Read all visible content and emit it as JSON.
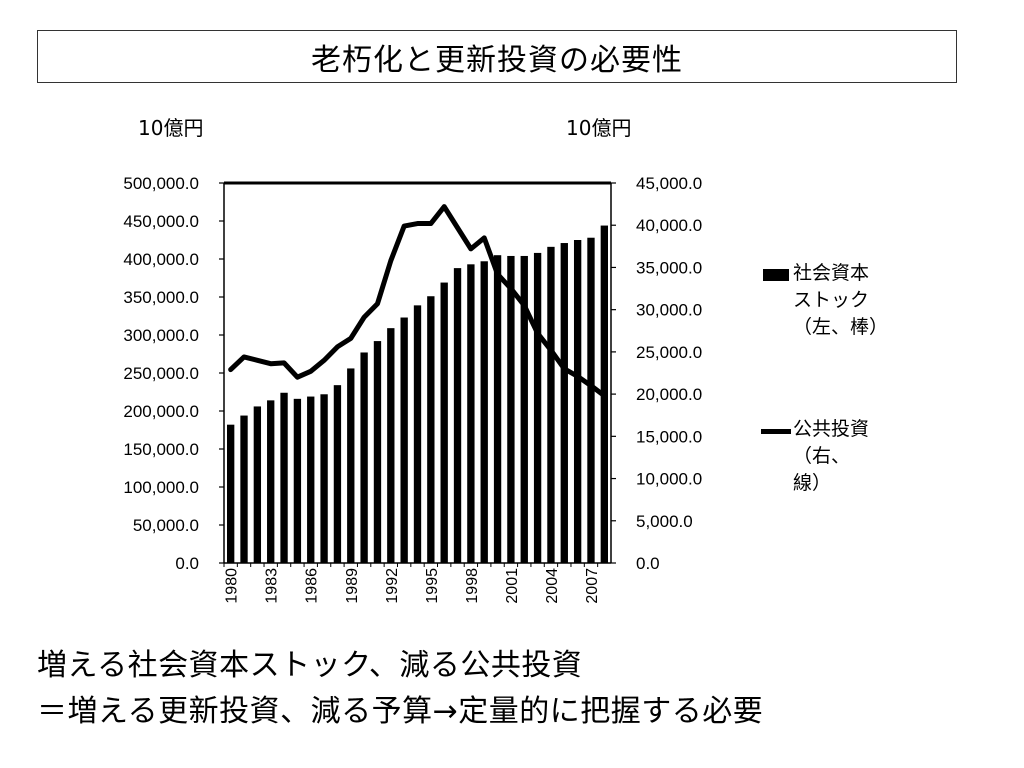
{
  "title": "老朽化と更新投資の必要性",
  "unit_left": "10億円",
  "unit_right": "10億円",
  "legend": {
    "bar_label": "社会資本\nストック\n（左、棒）",
    "line_label": "公共投資\n（右、\n線）"
  },
  "bottom_lines": [
    "増える社会資本ストック、減る公共投資",
    "＝増える更新投資、減る予算→定量的に把握する必要"
  ],
  "chart_data": {
    "type": "bar",
    "years": [
      1980,
      1981,
      1982,
      1983,
      1984,
      1985,
      1986,
      1987,
      1988,
      1989,
      1990,
      1991,
      1992,
      1993,
      1994,
      1995,
      1996,
      1997,
      1998,
      1999,
      2000,
      2001,
      2002,
      2003,
      2004,
      2005,
      2006,
      2007,
      2008
    ],
    "x_tick_labels": [
      "1980",
      "1983",
      "1986",
      "1989",
      "1992",
      "1995",
      "1998",
      "2001",
      "2004",
      "2007"
    ],
    "y_left_ticks": [
      "0.0",
      "50,000.0",
      "100,000.0",
      "150,000.0",
      "200,000.0",
      "250,000.0",
      "300,000.0",
      "350,000.0",
      "400,000.0",
      "450,000.0",
      "500,000.0"
    ],
    "y_right_ticks": [
      "0.0",
      "5,000.0",
      "10,000.0",
      "15,000.0",
      "20,000.0",
      "25,000.0",
      "30,000.0",
      "35,000.0",
      "40,000.0",
      "45,000.0"
    ],
    "ylim_left": [
      0,
      500000
    ],
    "ylim_right": [
      0,
      45000
    ],
    "series": [
      {
        "name": "社会資本ストック（左、棒）",
        "type": "bar",
        "axis": "left",
        "values": [
          182000,
          194000,
          206000,
          214000,
          224000,
          216000,
          219000,
          222000,
          234000,
          256000,
          277000,
          292000,
          309000,
          323000,
          339000,
          351000,
          369000,
          388000,
          393000,
          397000,
          405000,
          404000,
          404000,
          408000,
          416000,
          421000,
          425000,
          428000,
          444000
        ]
      },
      {
        "name": "公共投資（右、線）",
        "type": "line",
        "axis": "right",
        "values": [
          22900,
          24400,
          24000,
          23600,
          23700,
          22000,
          22700,
          24000,
          25600,
          26600,
          29100,
          30700,
          35800,
          39900,
          40200,
          40200,
          42200,
          39700,
          37200,
          38500,
          34200,
          32500,
          30500,
          27200,
          25200,
          23000,
          22100,
          21000,
          19800
        ]
      }
    ],
    "grid": false,
    "legend_position": "right"
  }
}
